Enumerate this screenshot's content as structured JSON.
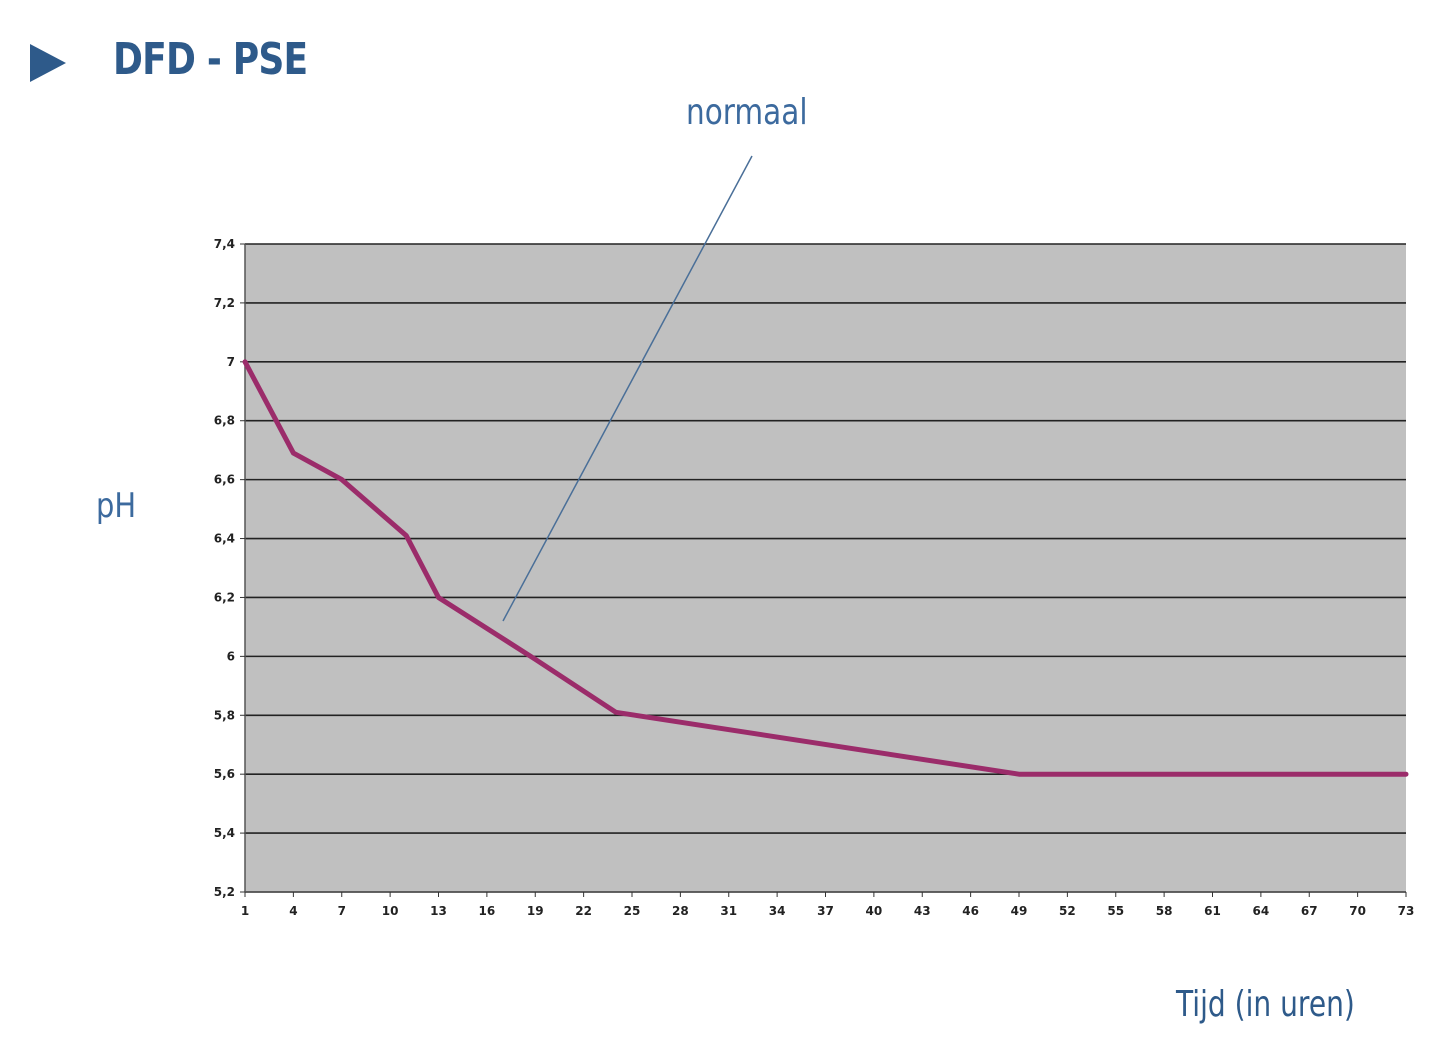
{
  "header": {
    "title": "DFD - PSE",
    "icon": "play-arrow-icon",
    "accent_color": "#2e5a8a"
  },
  "chart_data": {
    "type": "line",
    "title": "DFD - PSE",
    "xlabel": "Tijd (in uren)",
    "ylabel": "pH",
    "x_tick_labels": [
      "1",
      "4",
      "7",
      "10",
      "13",
      "16",
      "19",
      "22",
      "25",
      "28",
      "31",
      "34",
      "37",
      "40",
      "43",
      "46",
      "49",
      "52",
      "55",
      "58",
      "61",
      "64",
      "67",
      "70",
      "73"
    ],
    "y_tick_labels": [
      "7,4",
      "7,2",
      "7",
      "6,8",
      "6,6",
      "6,4",
      "6,2",
      "6",
      "5,8",
      "5,6",
      "5,4",
      "5,2"
    ],
    "xlim": [
      1,
      73
    ],
    "ylim": [
      5.2,
      7.4
    ],
    "grid": true,
    "plot_background": "#c0c0c0",
    "series": [
      {
        "name": "normaal",
        "color": "#9b2c6a",
        "x": [
          1,
          4,
          7,
          11,
          13,
          19,
          24,
          49,
          73
        ],
        "y": [
          7.0,
          6.69,
          6.6,
          6.41,
          6.2,
          5.99,
          5.81,
          5.6,
          5.6
        ]
      }
    ],
    "annotations": [
      {
        "text": "normaal",
        "points_to_x": 17,
        "points_to_y": 6.12
      }
    ]
  }
}
